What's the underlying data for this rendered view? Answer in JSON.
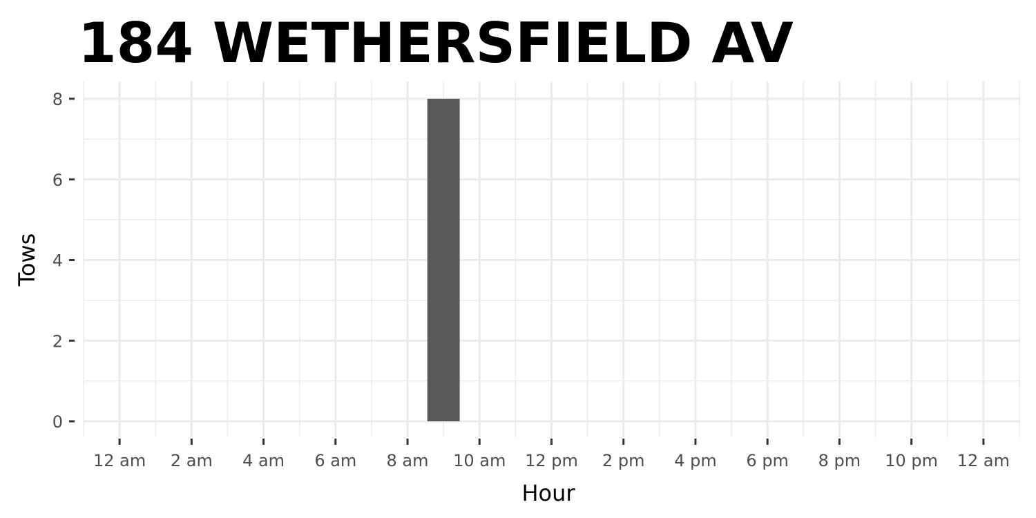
{
  "chart_data": {
    "type": "bar",
    "title": "184 WETHERSFIELD AV",
    "xlabel": "Hour",
    "ylabel": "Tows",
    "x_tick_labels": [
      "12 am",
      "2 am",
      "4 am",
      "6 am",
      "8 am",
      "10 am",
      "12 pm",
      "2 pm",
      "4 pm",
      "6 pm",
      "8 pm",
      "10 pm",
      "12 am"
    ],
    "x_tick_hours": [
      0,
      2,
      4,
      6,
      8,
      10,
      12,
      14,
      16,
      18,
      20,
      22,
      24
    ],
    "xlim": [
      -1,
      25
    ],
    "y_tick_labels": [
      "0",
      "2",
      "4",
      "6",
      "8"
    ],
    "y_tick_values": [
      0,
      2,
      4,
      6,
      8
    ],
    "ylim": [
      0,
      8
    ],
    "grid": true,
    "bar_color": "#595959",
    "bars": [
      {
        "hour": 9,
        "value": 8
      }
    ]
  }
}
